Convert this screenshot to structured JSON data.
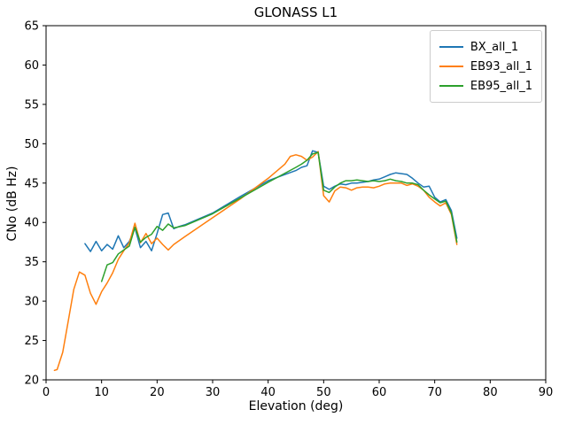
{
  "chart_data": {
    "type": "line",
    "title": "GLONASS L1",
    "xlabel": "Elevation (deg)",
    "ylabel": "CNo (dB Hz)",
    "xlim": [
      0,
      90
    ],
    "ylim": [
      20,
      65
    ],
    "xticks": [
      0,
      10,
      20,
      30,
      40,
      50,
      60,
      70,
      80,
      90
    ],
    "yticks": [
      20,
      25,
      30,
      35,
      40,
      45,
      50,
      55,
      60,
      65
    ],
    "grid": false,
    "legend_position": "upper right",
    "series": [
      {
        "name": "BX_all_1",
        "color": "#1f77b4",
        "x": [
          7,
          8,
          9,
          10,
          11,
          12,
          13,
          14,
          15,
          16,
          17,
          18,
          19,
          20,
          21,
          22,
          23,
          24,
          25,
          30,
          35,
          40,
          45,
          46,
          47,
          48,
          49,
          50,
          51,
          52,
          53,
          54,
          55,
          56,
          57,
          58,
          59,
          60,
          61,
          62,
          63,
          64,
          65,
          66,
          67,
          68,
          69,
          70,
          71,
          72,
          73,
          74
        ],
        "y": [
          37.3,
          36.3,
          37.6,
          36.4,
          37.2,
          36.6,
          38.3,
          36.8,
          37.6,
          39.3,
          36.8,
          37.6,
          36.4,
          38.6,
          41.0,
          41.2,
          39.2,
          39.5,
          39.7,
          41.2,
          43.3,
          45.3,
          46.6,
          47.0,
          47.2,
          49.1,
          48.9,
          44.6,
          44.2,
          44.6,
          44.9,
          44.8,
          45.0,
          45.0,
          45.1,
          45.2,
          45.4,
          45.5,
          45.8,
          46.1,
          46.3,
          46.2,
          46.1,
          45.6,
          45.0,
          44.5,
          44.6,
          43.2,
          42.6,
          42.9,
          41.5,
          38.0
        ]
      },
      {
        "name": "EB93_all_1",
        "color": "#ff7f0e",
        "x": [
          1.5,
          2,
          3,
          4,
          5,
          6,
          7,
          8,
          9,
          10,
          11,
          12,
          13,
          14,
          15,
          16,
          17,
          18,
          19,
          20,
          21,
          22,
          23,
          25,
          30,
          35,
          40,
          43,
          44,
          45,
          46,
          47,
          48,
          49,
          50,
          51,
          52,
          53,
          54,
          55,
          56,
          57,
          58,
          59,
          60,
          61,
          62,
          63,
          64,
          65,
          66,
          67,
          68,
          69,
          70,
          71,
          72,
          73,
          74
        ],
        "y": [
          21.2,
          21.3,
          23.5,
          27.5,
          31.5,
          33.7,
          33.3,
          31.0,
          29.6,
          31.2,
          32.3,
          33.6,
          35.3,
          36.4,
          37.4,
          39.9,
          37.4,
          38.6,
          37.3,
          38.0,
          37.2,
          36.5,
          37.2,
          38.2,
          40.6,
          43.0,
          45.6,
          47.4,
          48.4,
          48.6,
          48.4,
          47.9,
          48.3,
          49.0,
          43.4,
          42.6,
          44.0,
          44.5,
          44.4,
          44.1,
          44.4,
          44.5,
          44.5,
          44.4,
          44.6,
          44.9,
          45.0,
          45.0,
          45.0,
          44.7,
          44.9,
          44.6,
          44.1,
          43.2,
          42.6,
          42.1,
          42.5,
          41.0,
          37.2
        ]
      },
      {
        "name": "EB95_all_1",
        "color": "#2ca02c",
        "x": [
          10,
          11,
          12,
          13,
          14,
          15,
          16,
          17,
          18,
          19,
          20,
          21,
          22,
          23,
          25,
          30,
          35,
          40,
          45,
          46,
          47,
          48,
          49,
          50,
          51,
          52,
          53,
          54,
          55,
          56,
          57,
          58,
          59,
          60,
          61,
          62,
          63,
          64,
          65,
          66,
          67,
          68,
          69,
          70,
          71,
          72,
          73,
          74
        ],
        "y": [
          32.5,
          34.6,
          34.9,
          36.0,
          36.5,
          37.0,
          39.4,
          37.5,
          38.1,
          38.5,
          39.5,
          39.0,
          39.8,
          39.3,
          39.6,
          41.1,
          43.1,
          45.1,
          47.0,
          47.4,
          47.9,
          48.7,
          48.9,
          44.1,
          43.8,
          44.5,
          45.0,
          45.3,
          45.3,
          45.4,
          45.3,
          45.2,
          45.3,
          45.2,
          45.3,
          45.5,
          45.3,
          45.2,
          45.0,
          45.0,
          44.8,
          44.1,
          43.5,
          43.0,
          42.5,
          42.7,
          41.2,
          37.5
        ]
      }
    ]
  }
}
